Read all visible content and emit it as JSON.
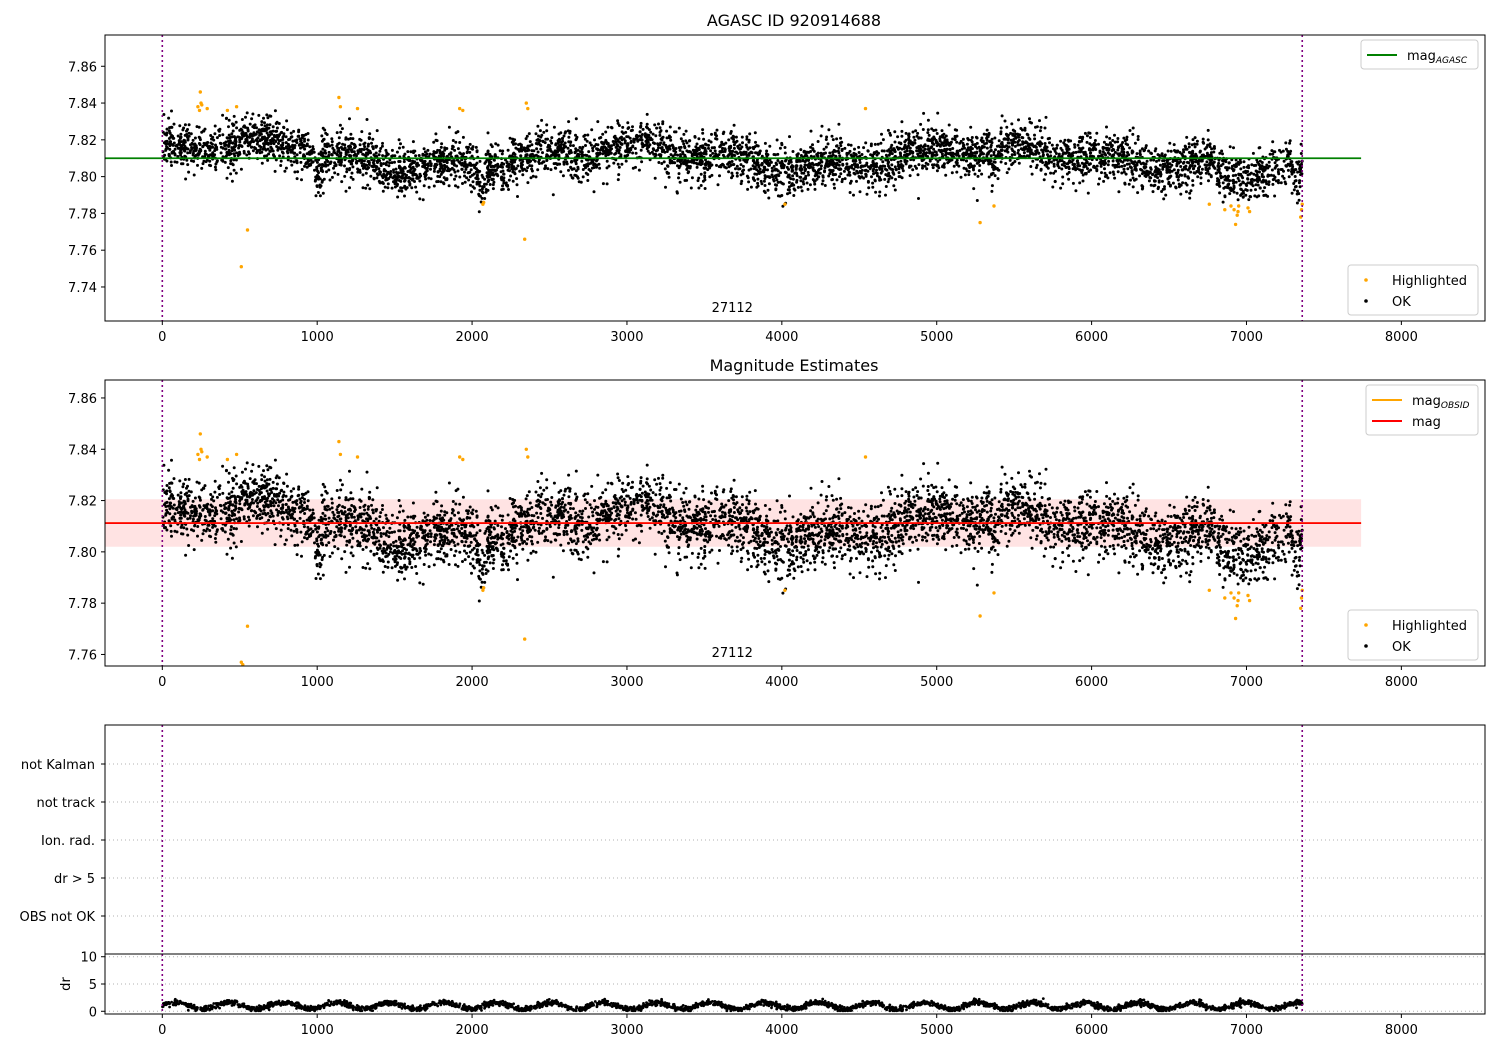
{
  "figure": {
    "title": "AGASC ID 920914688"
  },
  "chart_data": [
    {
      "type": "scatter",
      "title": "AGASC ID 920914688",
      "xlim": [
        -370,
        8540
      ],
      "ylim": [
        7.7215,
        7.877
      ],
      "x_ticks": [
        0,
        1000,
        2000,
        3000,
        4000,
        5000,
        6000,
        7000,
        8000
      ],
      "x_tick_labels": [
        "0",
        "1000",
        "2000",
        "3000",
        "4000",
        "5000",
        "6000",
        "7000",
        "8000"
      ],
      "y_ticks": [
        7.74,
        7.76,
        7.78,
        7.8,
        7.82,
        7.84,
        7.86
      ],
      "y_tick_labels": [
        "7.74",
        "7.76",
        "7.78",
        "7.80",
        "7.82",
        "7.84",
        "7.86"
      ],
      "annotation": "27112",
      "vlines": [
        0,
        7360
      ],
      "hlines": [
        {
          "name": "mag_AGASC",
          "y": 7.81,
          "x_range": [
            -370,
            7740
          ],
          "color": "#008000"
        }
      ],
      "legend_lines": [
        {
          "label": "mag",
          "subscript": "AGASC",
          "color": "#008000"
        }
      ],
      "legend_points": [
        {
          "label": "Highlighted",
          "color": "#ffa500"
        },
        {
          "label": "OK",
          "color": "#000000"
        }
      ],
      "series": [
        {
          "name": "OK",
          "color": "#000000",
          "x_range": [
            0,
            7360
          ],
          "n_points": 5200,
          "y_mean": 7.8105,
          "y_sd": 0.0075
        },
        {
          "name": "Highlighted",
          "color": "#ffa500",
          "x": [
            230,
            245,
            250,
            255,
            240,
            290,
            420,
            480,
            510,
            550,
            1140,
            1150,
            1260,
            1920,
            1940,
            2070,
            2075,
            2340,
            2350,
            2360,
            4020,
            4540,
            5280,
            5370,
            6760,
            6860,
            6900,
            6920,
            6930,
            6940,
            6945,
            6950,
            7010,
            7020,
            7350,
            7355,
            7360
          ],
          "y": [
            7.838,
            7.846,
            7.84,
            7.839,
            7.836,
            7.837,
            7.836,
            7.838,
            7.751,
            7.771,
            7.843,
            7.838,
            7.837,
            7.837,
            7.836,
            7.785,
            7.786,
            7.766,
            7.84,
            7.837,
            7.785,
            7.837,
            7.775,
            7.784,
            7.785,
            7.782,
            7.784,
            7.782,
            7.774,
            7.779,
            7.781,
            7.784,
            7.783,
            7.781,
            7.778,
            7.782,
            7.785
          ]
        }
      ]
    },
    {
      "type": "scatter",
      "title": "Magnitude Estimates",
      "xlim": [
        -370,
        8540
      ],
      "ylim": [
        7.7555,
        7.867
      ],
      "x_ticks": [
        0,
        1000,
        2000,
        3000,
        4000,
        5000,
        6000,
        7000,
        8000
      ],
      "x_tick_labels": [
        "0",
        "1000",
        "2000",
        "3000",
        "4000",
        "5000",
        "6000",
        "7000",
        "8000"
      ],
      "y_ticks": [
        7.76,
        7.78,
        7.8,
        7.82,
        7.84,
        7.86
      ],
      "y_tick_labels": [
        "7.76",
        "7.78",
        "7.80",
        "7.82",
        "7.84",
        "7.86"
      ],
      "annotation": "27112",
      "vlines": [
        0,
        7360
      ],
      "hlines": [
        {
          "name": "mag_OBSID",
          "y": 7.8112,
          "x_range": [
            -370,
            7740
          ],
          "color": "#ffa500"
        },
        {
          "name": "mag",
          "y": 7.8112,
          "x_range": [
            -370,
            7740
          ],
          "color": "#ff0000"
        }
      ],
      "bands": [
        {
          "y_range": [
            7.802,
            7.8205
          ],
          "x_range": [
            -370,
            7740
          ],
          "color": "#ff9999"
        }
      ],
      "legend_lines": [
        {
          "label": "mag",
          "subscript": "OBSID",
          "color": "#ffa500"
        },
        {
          "label": "mag",
          "subscript": "",
          "color": "#ff0000"
        }
      ],
      "legend_points": [
        {
          "label": "Highlighted",
          "color": "#ffa500"
        },
        {
          "label": "OK",
          "color": "#000000"
        }
      ],
      "series": [
        {
          "name": "OK",
          "color": "#000000",
          "x_range": [
            0,
            7360
          ],
          "n_points": 5200,
          "y_mean": 7.8105,
          "y_sd": 0.0075
        },
        {
          "name": "Highlighted",
          "color": "#ffa500",
          "x": [
            230,
            245,
            250,
            255,
            240,
            290,
            420,
            480,
            510,
            520,
            550,
            1140,
            1150,
            1260,
            1920,
            1940,
            2070,
            2075,
            2340,
            2350,
            2360,
            4020,
            4540,
            5280,
            5370,
            6760,
            6860,
            6900,
            6920,
            6930,
            6940,
            6945,
            6950,
            7010,
            7020,
            7350,
            7355,
            7360
          ],
          "y": [
            7.838,
            7.846,
            7.84,
            7.839,
            7.836,
            7.837,
            7.836,
            7.838,
            7.757,
            7.756,
            7.771,
            7.843,
            7.838,
            7.837,
            7.837,
            7.836,
            7.785,
            7.786,
            7.766,
            7.84,
            7.837,
            7.785,
            7.837,
            7.775,
            7.784,
            7.785,
            7.782,
            7.784,
            7.782,
            7.774,
            7.779,
            7.781,
            7.784,
            7.783,
            7.781,
            7.778,
            7.782,
            7.785
          ]
        }
      ]
    },
    {
      "type": "scatter",
      "title": "",
      "xlim": [
        -370,
        8540
      ],
      "categories": [
        "not Kalman",
        "not track",
        "Ion. rad.",
        "dr > 5",
        "OBS not OK"
      ],
      "vlines": [
        0,
        7360
      ],
      "series": []
    },
    {
      "type": "scatter",
      "title": "",
      "ylabel": "dr",
      "xlim": [
        -370,
        8540
      ],
      "ylim": [
        -0.5,
        10.5
      ],
      "x_ticks": [
        0,
        1000,
        2000,
        3000,
        4000,
        5000,
        6000,
        7000,
        8000
      ],
      "x_tick_labels": [
        "0",
        "1000",
        "2000",
        "3000",
        "4000",
        "5000",
        "6000",
        "7000",
        "8000"
      ],
      "y_ticks": [
        0,
        5,
        10
      ],
      "y_tick_labels": [
        "0",
        "5",
        "10"
      ],
      "vlines": [
        0,
        7360
      ],
      "series": [
        {
          "name": "dr",
          "color": "#000000",
          "x_range": [
            0,
            7360
          ],
          "n_points": 3000,
          "y_mean": 1.0,
          "y_sd": 0.4
        }
      ]
    }
  ]
}
